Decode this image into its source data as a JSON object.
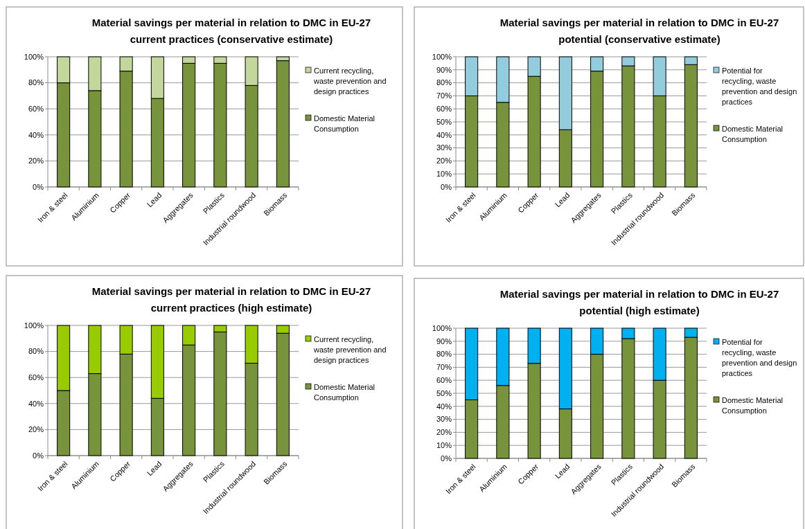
{
  "chart_data": [
    {
      "type": "bar",
      "stacked": true,
      "title": "Material savings per material in relation to DMC in EU-27\ncurrent practices (conservative estimate)",
      "categories": [
        "Iron & steel",
        "Aluminium",
        "Copper",
        "Lead",
        "Aggregates",
        "Plastics",
        "Industrial roundwood",
        "Biomass"
      ],
      "series": [
        {
          "name": "Domestic Material Consumption",
          "color": "#77933c",
          "values": [
            80,
            74,
            89,
            68,
            95,
            95,
            78,
            97
          ]
        },
        {
          "name": "Current recycling, waste prevention and design practices",
          "color": "#c3d69b",
          "values": [
            20,
            26,
            11,
            32,
            5,
            5,
            22,
            3
          ]
        }
      ],
      "ylim": [
        0,
        100
      ],
      "yticks": [
        {
          "value": 0,
          "label": "0%"
        },
        {
          "value": 20,
          "label": "20%"
        },
        {
          "value": 40,
          "label": "40%"
        },
        {
          "value": 60,
          "label": "60%"
        },
        {
          "value": 80,
          "label": "80%"
        },
        {
          "value": 100,
          "label": "100%"
        }
      ],
      "grid": "y",
      "legend": "right"
    },
    {
      "type": "bar",
      "stacked": true,
      "title": "Material savings per material in relation to DMC in EU-27\npotential (conservative estimate)",
      "categories": [
        "Iron & steel",
        "Aluminium",
        "Copper",
        "Lead",
        "Aggregates",
        "Plastics",
        "Industrial roundwood",
        "Biomass"
      ],
      "series": [
        {
          "name": "Domestic Material Consumption",
          "color": "#77933c",
          "values": [
            70,
            65,
            85,
            44,
            89,
            93,
            70,
            94
          ]
        },
        {
          "name": "Potential for recycling, waste prevention and design practices",
          "color": "#93cddd",
          "values": [
            30,
            35,
            15,
            56,
            11,
            7,
            30,
            6
          ]
        }
      ],
      "ylim": [
        0,
        100
      ],
      "yticks": [
        {
          "value": 0,
          "label": "0%"
        },
        {
          "value": 10,
          "label": "10%"
        },
        {
          "value": 20,
          "label": "20%"
        },
        {
          "value": 30,
          "label": "30%"
        },
        {
          "value": 40,
          "label": "40%"
        },
        {
          "value": 50,
          "label": "50%"
        },
        {
          "value": 60,
          "label": "60%"
        },
        {
          "value": 70,
          "label": "70%"
        },
        {
          "value": 80,
          "label": "80%"
        },
        {
          "value": 90,
          "label": "90%"
        },
        {
          "value": 100,
          "label": "100%"
        }
      ],
      "grid": "y",
      "legend": "right"
    },
    {
      "type": "bar",
      "stacked": true,
      "title": "Material savings per material in relation to DMC in EU-27\ncurrent practices (high estimate)",
      "categories": [
        "Iron & steel",
        "Aluminium",
        "Copper",
        "Lead",
        "Aggregates",
        "Plastics",
        "Industrial roundwood",
        "Biomass"
      ],
      "series": [
        {
          "name": "Domestic Material Consumption",
          "color": "#77933c",
          "values": [
            50,
            63,
            78,
            44,
            85,
            95,
            71,
            94
          ]
        },
        {
          "name": "Current recycling, waste prevention and design practices",
          "color": "#99cc00",
          "values": [
            50,
            37,
            22,
            56,
            15,
            5,
            29,
            6
          ]
        }
      ],
      "ylim": [
        0,
        100
      ],
      "yticks": [
        {
          "value": 0,
          "label": "0%"
        },
        {
          "value": 20,
          "label": "20%"
        },
        {
          "value": 40,
          "label": "40%"
        },
        {
          "value": 60,
          "label": "60%"
        },
        {
          "value": 80,
          "label": "80%"
        },
        {
          "value": 100,
          "label": "100%"
        }
      ],
      "grid": "y",
      "legend": "right"
    },
    {
      "type": "bar",
      "stacked": true,
      "title": "Material savings per material in relation to DMC in EU-27\npotential (high estimate)",
      "categories": [
        "Iron & steel",
        "Aluminium",
        "Copper",
        "Lead",
        "Aggregates",
        "Plastics",
        "Industrial roundwood",
        "Biomass"
      ],
      "series": [
        {
          "name": "Domestic Material Consumption",
          "color": "#77933c",
          "values": [
            45,
            56,
            73,
            38,
            80,
            92,
            60,
            93
          ]
        },
        {
          "name": "Potential for recycling, waste prevention and design practices",
          "color": "#00b0f0",
          "values": [
            55,
            44,
            27,
            62,
            20,
            8,
            40,
            7
          ]
        }
      ],
      "ylim": [
        0,
        100
      ],
      "yticks": [
        {
          "value": 0,
          "label": "0%"
        },
        {
          "value": 10,
          "label": "10%"
        },
        {
          "value": 20,
          "label": "20%"
        },
        {
          "value": 30,
          "label": "30%"
        },
        {
          "value": 40,
          "label": "40%"
        },
        {
          "value": 50,
          "label": "50%"
        },
        {
          "value": 60,
          "label": "60%"
        },
        {
          "value": 70,
          "label": "70%"
        },
        {
          "value": 80,
          "label": "80%"
        },
        {
          "value": 90,
          "label": "90%"
        },
        {
          "value": 100,
          "label": "100%"
        }
      ],
      "grid": "y",
      "legend": "right"
    }
  ]
}
